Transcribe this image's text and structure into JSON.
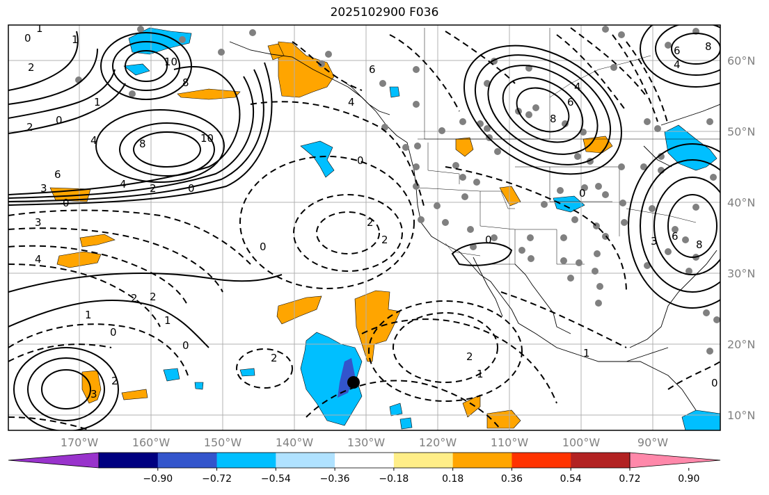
{
  "title": "2025102900 F036",
  "lon_ticks": [
    "170°W",
    "160°W",
    "150°W",
    "140°W",
    "130°W",
    "120°W",
    "110°W",
    "100°W",
    "90°W"
  ],
  "lat_ticks": [
    "60°N",
    "50°N",
    "40°N",
    "30°N",
    "20°N",
    "10°N"
  ],
  "colorbar": {
    "colors": [
      "#9933cc",
      "#000080",
      "#3355cc",
      "#00bfff",
      "#b0e2ff",
      "#ffffff",
      "#ffee88",
      "#ffa500",
      "#ff3300",
      "#b22222",
      "#ff88aa"
    ],
    "labels": [
      "−0.90",
      "−0.72",
      "−0.54",
      "−0.36",
      "−0.18",
      "0.18",
      "0.36",
      "0.54",
      "0.72",
      "0.90"
    ]
  },
  "contour_labels": [
    {
      "text": "1"
    },
    {
      "text": "0"
    },
    {
      "text": "1"
    },
    {
      "text": "2"
    },
    {
      "text": "10"
    },
    {
      "text": "8"
    },
    {
      "text": "1"
    },
    {
      "text": "0"
    },
    {
      "text": "2"
    },
    {
      "text": "4"
    },
    {
      "text": "8"
    },
    {
      "text": "10"
    },
    {
      "text": "6"
    },
    {
      "text": "4"
    },
    {
      "text": "3"
    },
    {
      "text": "2"
    },
    {
      "text": "0"
    },
    {
      "text": "0"
    },
    {
      "text": "3"
    },
    {
      "text": "4"
    },
    {
      "text": "0"
    },
    {
      "text": "2"
    },
    {
      "text": "2"
    },
    {
      "text": "6"
    },
    {
      "text": "4"
    },
    {
      "text": "0"
    },
    {
      "text": "2"
    },
    {
      "text": "2"
    },
    {
      "text": "2"
    },
    {
      "text": "1"
    },
    {
      "text": "0"
    },
    {
      "text": "1"
    },
    {
      "text": "0"
    },
    {
      "text": "2"
    },
    {
      "text": "3"
    },
    {
      "text": "1"
    },
    {
      "text": "2"
    },
    {
      "text": "1"
    },
    {
      "text": "0"
    },
    {
      "text": "0"
    },
    {
      "text": "3"
    },
    {
      "text": "0"
    },
    {
      "text": "8"
    },
    {
      "text": "6"
    },
    {
      "text": "4"
    },
    {
      "text": "8"
    },
    {
      "text": "6"
    },
    {
      "text": "4"
    },
    {
      "text": "6"
    },
    {
      "text": "8"
    },
    {
      "text": "3"
    },
    {
      "text": "0"
    }
  ],
  "colors": {
    "grid": "#b0b0b0",
    "orange": "#ffa500",
    "blue": "#00bfff",
    "darkblue": "#3355cc",
    "dot": "#808080"
  }
}
